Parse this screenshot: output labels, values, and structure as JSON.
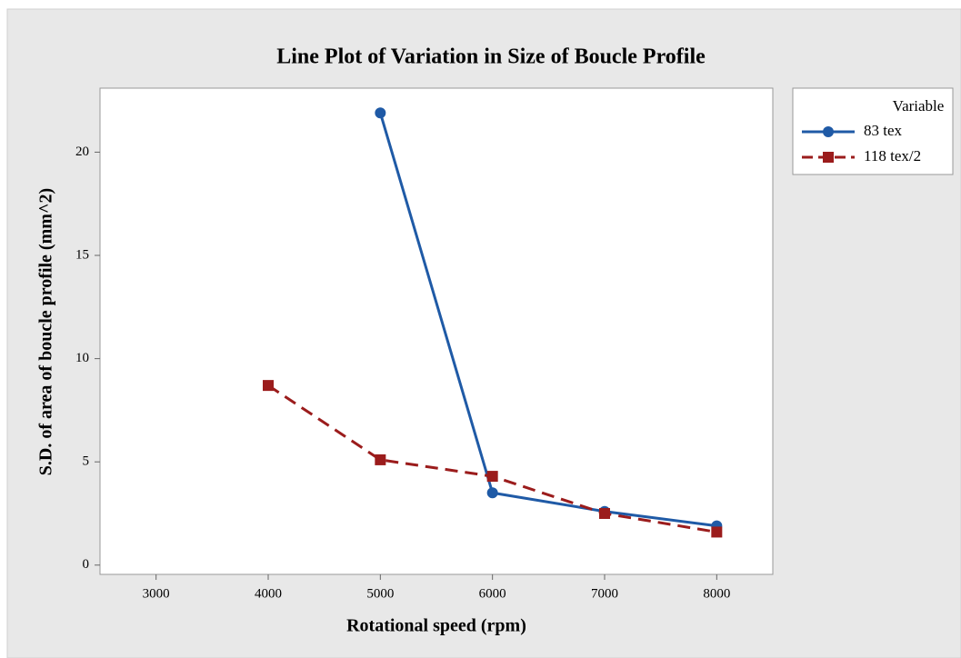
{
  "chart_data": {
    "type": "line",
    "title": "Line Plot of Variation in Size of Boucle Profile",
    "x_label": "Rotational speed (rpm)",
    "y_label": "S.D. of area of boucle profile (mm^2)",
    "x": [
      4000,
      5000,
      6000,
      7000,
      8000
    ],
    "series": [
      {
        "name": "83 tex",
        "color": "#1f5aa6",
        "marker": "circle",
        "dash": "solid",
        "values": [
          null,
          21.9,
          3.5,
          2.6,
          1.9
        ]
      },
      {
        "name": "118 tex/2",
        "color": "#9b1c1c",
        "marker": "square",
        "dash": "dashed",
        "values": [
          8.7,
          5.1,
          4.3,
          2.5,
          1.6
        ]
      }
    ],
    "xlim": [
      2500,
      8500
    ],
    "xticks": [
      3000,
      4000,
      5000,
      6000,
      7000,
      8000
    ],
    "ylim": [
      -0.45,
      23.1
    ],
    "yticks": [
      0,
      5,
      10,
      15,
      20
    ],
    "legend_title": "Variable",
    "legend_position": "right"
  }
}
